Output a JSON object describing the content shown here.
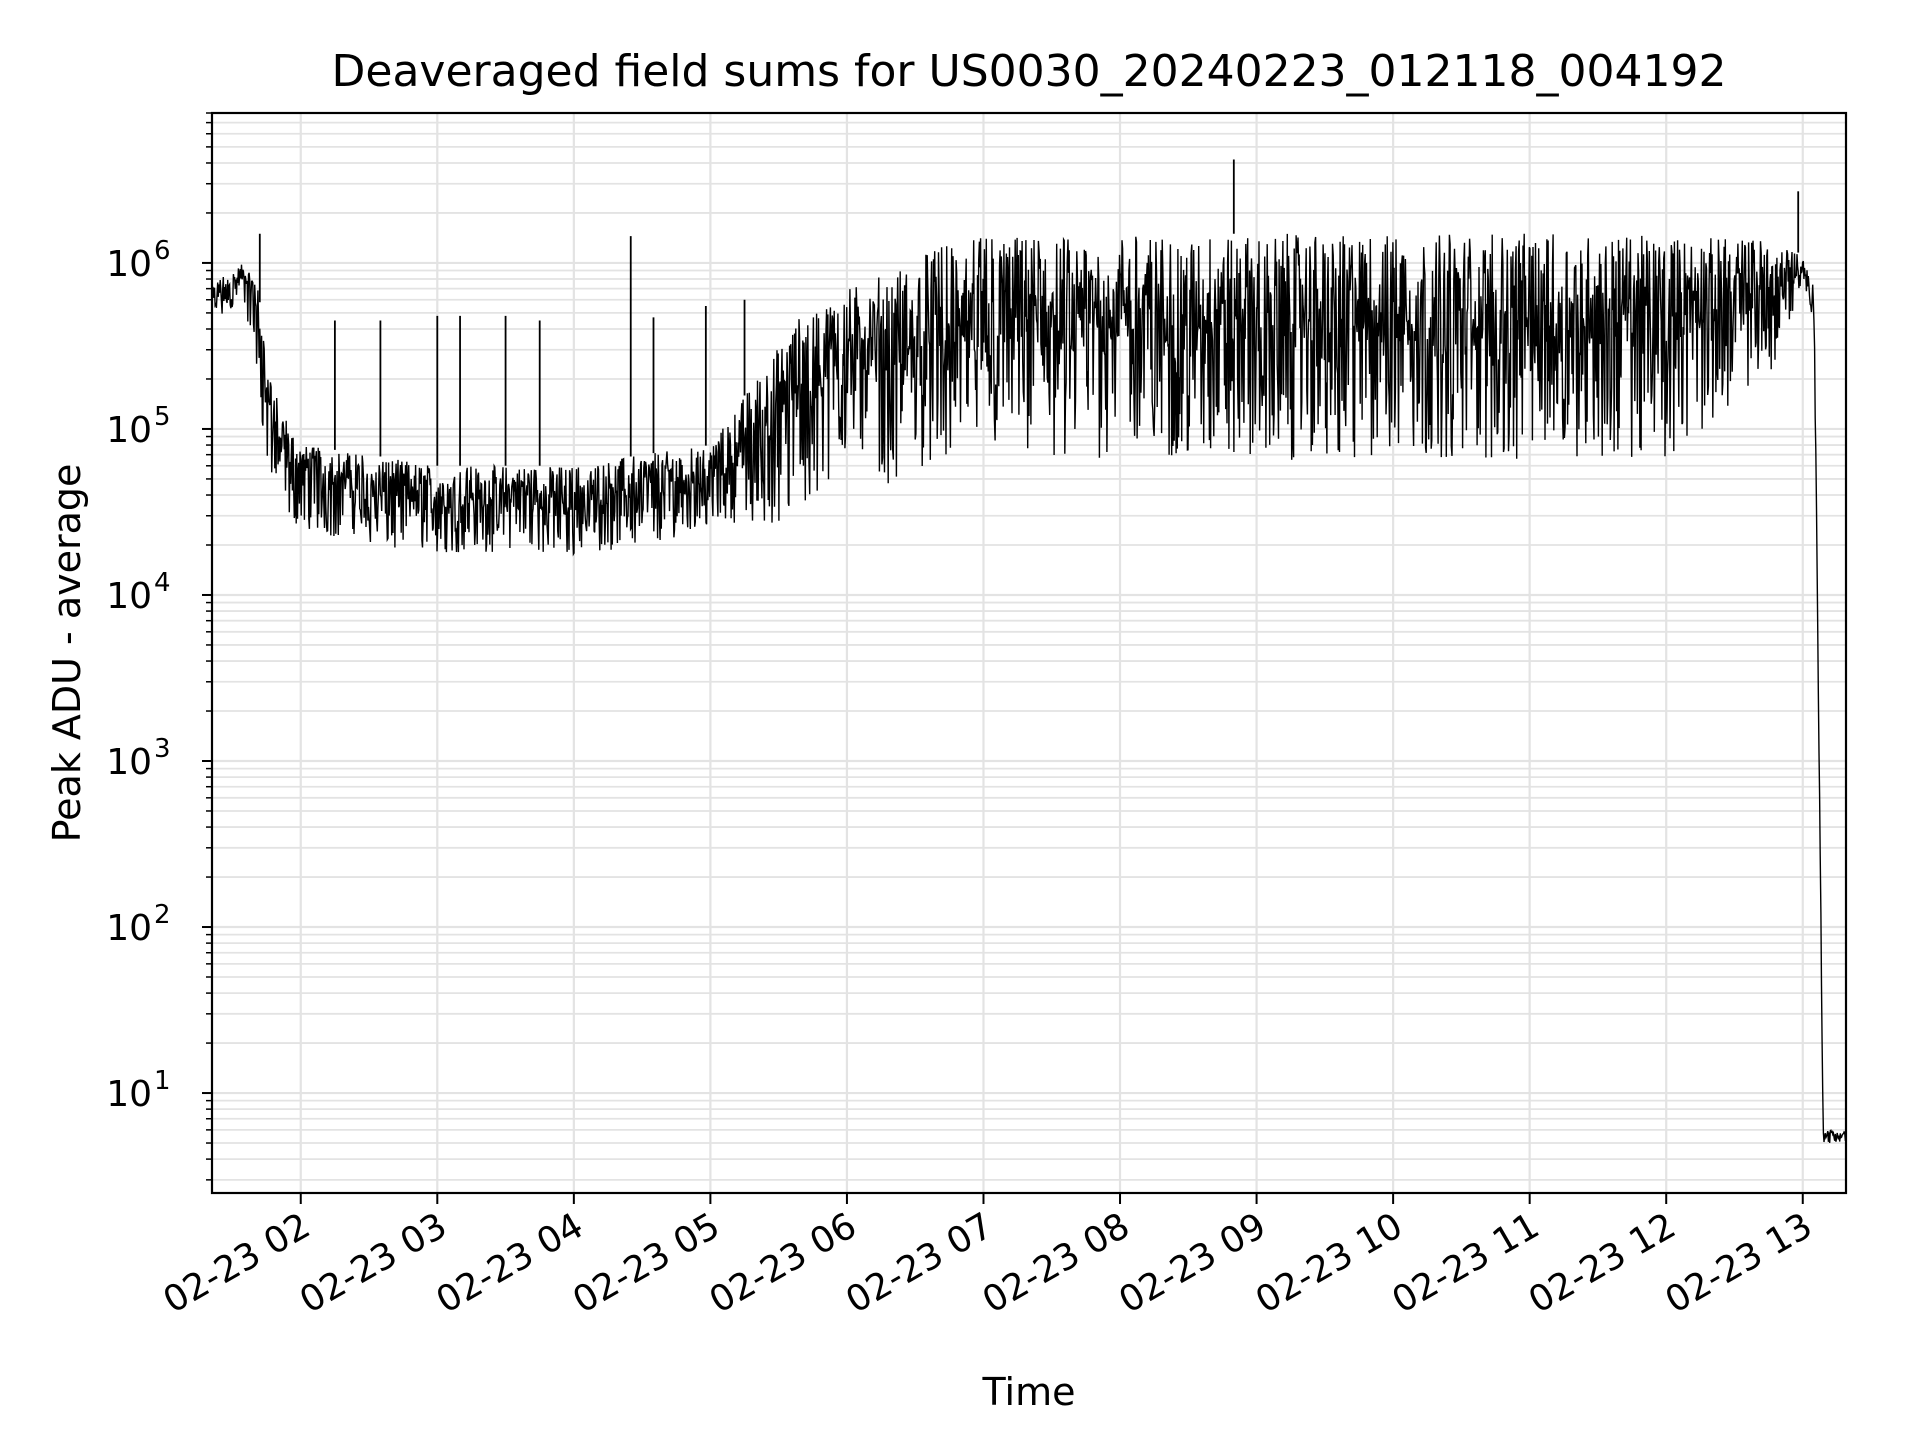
{
  "chart_data": {
    "type": "line",
    "title": "Deaveraged field sums for US0030_20240223_012118_004192",
    "xlabel": "Time",
    "ylabel": "Peak ADU - average",
    "y_scale": "log",
    "ylim": [
      2.5,
      8000000
    ],
    "xlim": [
      "2024-02-23 01:21",
      "2024-02-23 13:19"
    ],
    "grid": true,
    "line_color": "#000000",
    "grid_color": "#e3e3e3",
    "x_ticks": [
      {
        "t": "2024-02-23 02:00",
        "label": "02-23 02"
      },
      {
        "t": "2024-02-23 03:00",
        "label": "02-23 03"
      },
      {
        "t": "2024-02-23 04:00",
        "label": "02-23 04"
      },
      {
        "t": "2024-02-23 05:00",
        "label": "02-23 05"
      },
      {
        "t": "2024-02-23 06:00",
        "label": "02-23 06"
      },
      {
        "t": "2024-02-23 07:00",
        "label": "02-23 07"
      },
      {
        "t": "2024-02-23 08:00",
        "label": "02-23 08"
      },
      {
        "t": "2024-02-23 09:00",
        "label": "02-23 09"
      },
      {
        "t": "2024-02-23 10:00",
        "label": "02-23 10"
      },
      {
        "t": "2024-02-23 11:00",
        "label": "02-23 11"
      },
      {
        "t": "2024-02-23 12:00",
        "label": "02-23 12"
      },
      {
        "t": "2024-02-23 13:00",
        "label": "02-23 13"
      }
    ],
    "y_ticks": [
      {
        "value": 10,
        "base": "10",
        "exp": "1"
      },
      {
        "value": 100,
        "base": "10",
        "exp": "2"
      },
      {
        "value": 1000,
        "base": "10",
        "exp": "3"
      },
      {
        "value": 10000,
        "base": "10",
        "exp": "4"
      },
      {
        "value": 100000,
        "base": "10",
        "exp": "5"
      },
      {
        "value": 1000000,
        "base": "10",
        "exp": "6"
      }
    ],
    "series": [
      {
        "envelope": [
          {
            "t": "2024-02-23 01:21",
            "low": 450000,
            "high": 750000
          },
          {
            "t": "2024-02-23 01:30",
            "low": 500000,
            "high": 900000
          },
          {
            "t": "2024-02-23 01:35",
            "low": 600000,
            "high": 1000000
          },
          {
            "t": "2024-02-23 01:40",
            "low": 250000,
            "high": 900000
          },
          {
            "t": "2024-02-23 01:45",
            "low": 60000,
            "high": 300000
          },
          {
            "t": "2024-02-23 01:50",
            "low": 30000,
            "high": 150000
          },
          {
            "t": "2024-02-23 02:00",
            "low": 25000,
            "high": 80000
          },
          {
            "t": "2024-02-23 02:30",
            "low": 20000,
            "high": 70000
          },
          {
            "t": "2024-02-23 03:00",
            "low": 18000,
            "high": 60000
          },
          {
            "t": "2024-02-23 03:30",
            "low": 18000,
            "high": 60000
          },
          {
            "t": "2024-02-23 04:00",
            "low": 17000,
            "high": 60000
          },
          {
            "t": "2024-02-23 04:30",
            "low": 20000,
            "high": 70000
          },
          {
            "t": "2024-02-23 05:00",
            "low": 25000,
            "high": 80000
          },
          {
            "t": "2024-02-23 05:20",
            "low": 25000,
            "high": 200000
          },
          {
            "t": "2024-02-23 05:40",
            "low": 30000,
            "high": 500000
          },
          {
            "t": "2024-02-23 06:00",
            "low": 70000,
            "high": 700000
          },
          {
            "t": "2024-02-23 06:20",
            "low": 45000,
            "high": 900000
          },
          {
            "t": "2024-02-23 06:40",
            "low": 60000,
            "high": 1300000
          },
          {
            "t": "2024-02-23 07:00",
            "low": 70000,
            "high": 1450000
          },
          {
            "t": "2024-02-23 08:00",
            "low": 65000,
            "high": 1500000
          },
          {
            "t": "2024-02-23 09:00",
            "low": 65000,
            "high": 1500000
          },
          {
            "t": "2024-02-23 10:00",
            "low": 65000,
            "high": 1500000
          },
          {
            "t": "2024-02-23 11:00",
            "low": 65000,
            "high": 1500000
          },
          {
            "t": "2024-02-23 12:00",
            "low": 65000,
            "high": 1450000
          },
          {
            "t": "2024-02-23 12:50",
            "low": 250000,
            "high": 1400000
          },
          {
            "t": "2024-02-23 13:00",
            "low": 800000,
            "high": 1100000
          },
          {
            "t": "2024-02-23 13:05",
            "low": 400000,
            "high": 700000
          },
          {
            "t": "2024-02-23 13:09",
            "low": 5,
            "high": 6
          },
          {
            "t": "2024-02-23 13:19",
            "low": 5,
            "high": 6
          }
        ],
        "spikes": [
          {
            "t": "2024-02-23 01:42",
            "value": 1500000
          },
          {
            "t": "2024-02-23 02:15",
            "value": 450000
          },
          {
            "t": "2024-02-23 02:35",
            "value": 450000
          },
          {
            "t": "2024-02-23 03:00",
            "value": 480000
          },
          {
            "t": "2024-02-23 03:10",
            "value": 480000
          },
          {
            "t": "2024-02-23 03:30",
            "value": 480000
          },
          {
            "t": "2024-02-23 03:45",
            "value": 450000
          },
          {
            "t": "2024-02-23 04:25",
            "value": 1450000
          },
          {
            "t": "2024-02-23 04:35",
            "value": 470000
          },
          {
            "t": "2024-02-23 04:58",
            "value": 550000
          },
          {
            "t": "2024-02-23 05:15",
            "value": 600000
          },
          {
            "t": "2024-02-23 08:50",
            "value": 4200000
          },
          {
            "t": "2024-02-23 12:58",
            "value": 2700000
          }
        ]
      }
    ]
  }
}
